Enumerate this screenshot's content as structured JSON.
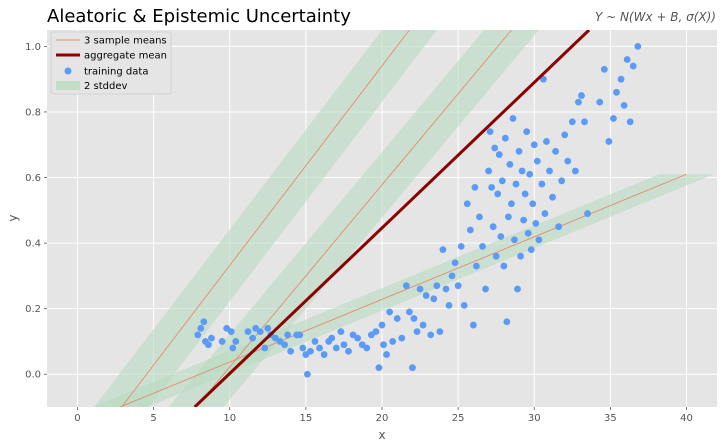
{
  "chart_data": {
    "type": "scatter",
    "title": "Aleatoric & Epistemic Uncertainty",
    "subtitle": "Y ~ N(Wx + B, σ(X))",
    "xlabel": "x",
    "ylabel": "y",
    "xlim": [
      -2,
      42
    ],
    "ylim": [
      -0.1,
      1.05
    ],
    "xticks": [
      0,
      5,
      10,
      15,
      20,
      25,
      30,
      35,
      40
    ],
    "yticks": [
      0.0,
      0.2,
      0.4,
      0.6,
      0.8,
      1.0
    ],
    "ytick_labels": [
      "0.0",
      "0.2",
      "0.4",
      "0.6",
      "0.8",
      "1.0"
    ],
    "grid": true,
    "legend": {
      "position": "top-left",
      "entries": [
        "3 sample means",
        "aggregate mean",
        "training data",
        "2 stddev"
      ]
    },
    "colors": {
      "background": "#e5e5e5",
      "grid": "#ffffff",
      "points": "#5b9bf5",
      "aggregate_mean": "#8b0000",
      "sample_means": "#e58b6e",
      "band": "#b8dbc0"
    },
    "sample_mean_lines": [
      {
        "x": [
          2.8,
          40
        ],
        "y": [
          -0.1,
          0.61
        ],
        "band_halfwidth_x": 1.8
      },
      {
        "x": [
          7.8,
          28.5
        ],
        "y": [
          -0.1,
          1.05
        ],
        "band_halfwidth_x": 1.8
      },
      {
        "x": [
          2.9,
          21.8
        ],
        "y": [
          -0.1,
          1.05
        ],
        "band_halfwidth_x": 1.8
      }
    ],
    "aggregate_mean_line": {
      "x": [
        7.7,
        33.6
      ],
      "y": [
        -0.1,
        1.05
      ]
    },
    "points": [
      [
        7.9,
        0.12
      ],
      [
        8.1,
        0.14
      ],
      [
        8.3,
        0.16
      ],
      [
        8.4,
        0.1
      ],
      [
        8.6,
        0.09
      ],
      [
        8.8,
        0.11
      ],
      [
        9.5,
        0.1
      ],
      [
        9.8,
        0.14
      ],
      [
        10.1,
        0.13
      ],
      [
        10.2,
        0.08
      ],
      [
        10.4,
        0.1
      ],
      [
        11.2,
        0.13
      ],
      [
        11.5,
        0.11
      ],
      [
        11.7,
        0.14
      ],
      [
        12.0,
        0.13
      ],
      [
        12.3,
        0.08
      ],
      [
        12.5,
        0.14
      ],
      [
        12.7,
        0.12
      ],
      [
        13.0,
        0.11
      ],
      [
        13.3,
        0.1
      ],
      [
        13.6,
        0.09
      ],
      [
        13.8,
        0.12
      ],
      [
        14.0,
        0.07
      ],
      [
        14.4,
        0.12
      ],
      [
        14.6,
        0.12
      ],
      [
        14.8,
        0.08
      ],
      [
        15.0,
        0.06
      ],
      [
        15.1,
        0.0
      ],
      [
        15.3,
        0.07
      ],
      [
        15.6,
        0.1
      ],
      [
        15.9,
        0.08
      ],
      [
        16.2,
        0.06
      ],
      [
        16.5,
        0.1
      ],
      [
        16.7,
        0.11
      ],
      [
        17.0,
        0.08
      ],
      [
        17.3,
        0.13
      ],
      [
        17.5,
        0.09
      ],
      [
        17.8,
        0.07
      ],
      [
        18.1,
        0.12
      ],
      [
        18.4,
        0.11
      ],
      [
        18.7,
        0.09
      ],
      [
        19.0,
        0.08
      ],
      [
        19.3,
        0.12
      ],
      [
        19.6,
        0.13
      ],
      [
        19.8,
        0.02
      ],
      [
        20.0,
        0.15
      ],
      [
        20.1,
        0.09
      ],
      [
        20.3,
        0.06
      ],
      [
        20.5,
        0.19
      ],
      [
        20.7,
        0.1
      ],
      [
        21.0,
        0.17
      ],
      [
        21.3,
        0.11
      ],
      [
        21.6,
        0.27
      ],
      [
        21.8,
        0.19
      ],
      [
        22.0,
        0.02
      ],
      [
        22.1,
        0.17
      ],
      [
        22.3,
        0.13
      ],
      [
        22.5,
        0.26
      ],
      [
        22.7,
        0.15
      ],
      [
        22.9,
        0.24
      ],
      [
        23.2,
        0.12
      ],
      [
        23.4,
        0.23
      ],
      [
        23.6,
        0.27
      ],
      [
        23.8,
        0.13
      ],
      [
        24.0,
        0.38
      ],
      [
        24.2,
        0.26
      ],
      [
        24.4,
        0.21
      ],
      [
        24.6,
        0.3
      ],
      [
        24.8,
        0.34
      ],
      [
        25.0,
        0.27
      ],
      [
        25.2,
        0.39
      ],
      [
        25.4,
        0.21
      ],
      [
        25.6,
        0.52
      ],
      [
        25.8,
        0.44
      ],
      [
        26.0,
        0.15
      ],
      [
        26.1,
        0.57
      ],
      [
        26.2,
        0.33
      ],
      [
        26.4,
        0.48
      ],
      [
        26.6,
        0.39
      ],
      [
        26.8,
        0.26
      ],
      [
        27.0,
        0.62
      ],
      [
        27.1,
        0.74
      ],
      [
        27.2,
        0.57
      ],
      [
        27.3,
        0.45
      ],
      [
        27.4,
        0.69
      ],
      [
        27.5,
        0.36
      ],
      [
        27.6,
        0.55
      ],
      [
        27.7,
        0.67
      ],
      [
        27.8,
        0.42
      ],
      [
        27.9,
        0.59
      ],
      [
        28.0,
        0.33
      ],
      [
        28.1,
        0.72
      ],
      [
        28.2,
        0.16
      ],
      [
        28.3,
        0.48
      ],
      [
        28.4,
        0.64
      ],
      [
        28.5,
        0.52
      ],
      [
        28.6,
        0.78
      ],
      [
        28.7,
        0.41
      ],
      [
        28.8,
        0.58
      ],
      [
        28.9,
        0.26
      ],
      [
        29.0,
        0.68
      ],
      [
        29.1,
        0.36
      ],
      [
        29.2,
        0.62
      ],
      [
        29.3,
        0.47
      ],
      [
        29.4,
        0.55
      ],
      [
        29.5,
        0.74
      ],
      [
        29.6,
        0.43
      ],
      [
        29.7,
        0.61
      ],
      [
        29.8,
        0.38
      ],
      [
        29.9,
        0.52
      ],
      [
        30.0,
        0.7
      ],
      [
        30.1,
        0.46
      ],
      [
        30.2,
        0.65
      ],
      [
        30.3,
        0.41
      ],
      [
        30.5,
        0.58
      ],
      [
        30.6,
        0.9
      ],
      [
        30.7,
        0.49
      ],
      [
        30.8,
        0.71
      ],
      [
        31.0,
        0.62
      ],
      [
        31.2,
        0.54
      ],
      [
        31.4,
        0.68
      ],
      [
        31.6,
        0.45
      ],
      [
        31.8,
        0.59
      ],
      [
        32.0,
        0.73
      ],
      [
        32.2,
        0.65
      ],
      [
        32.5,
        0.77
      ],
      [
        32.7,
        0.62
      ],
      [
        32.9,
        0.83
      ],
      [
        33.1,
        0.85
      ],
      [
        33.3,
        0.77
      ],
      [
        33.5,
        0.49
      ],
      [
        34.3,
        0.83
      ],
      [
        34.6,
        0.93
      ],
      [
        34.9,
        0.71
      ],
      [
        35.2,
        0.78
      ],
      [
        35.4,
        0.86
      ],
      [
        35.7,
        0.9
      ],
      [
        35.9,
        0.82
      ],
      [
        36.1,
        0.96
      ],
      [
        36.3,
        0.77
      ],
      [
        36.5,
        0.94
      ],
      [
        36.8,
        1.0
      ]
    ]
  }
}
